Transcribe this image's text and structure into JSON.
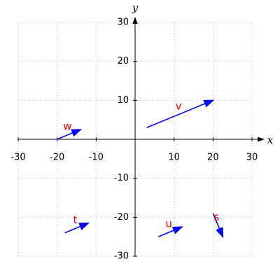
{
  "chart_data": {
    "type": "vector",
    "x_label": "x",
    "y_label": "y",
    "xlim": [
      -30,
      30
    ],
    "ylim": [
      -30,
      30
    ],
    "xticks": [
      -30,
      -20,
      -10,
      10,
      20,
      30
    ],
    "yticks": [
      -30,
      -20,
      -10,
      10,
      20,
      30
    ],
    "grid": true,
    "color": "#0000ff",
    "label_color": "#ee0000",
    "vectors": [
      {
        "name": "v",
        "x0": 3,
        "y0": 3,
        "x1": 20,
        "y1": 10
      },
      {
        "name": "w",
        "x0": -20,
        "y0": 0,
        "x1": -14,
        "y1": 2.5
      },
      {
        "name": "t",
        "x0": -18,
        "y0": -24,
        "x1": -12,
        "y1": -21.5
      },
      {
        "name": "u",
        "x0": 6,
        "y0": -25,
        "x1": 12,
        "y1": -22.5
      },
      {
        "name": "s",
        "x0": 20,
        "y0": -19,
        "x1": 22.5,
        "y1": -25
      }
    ]
  }
}
